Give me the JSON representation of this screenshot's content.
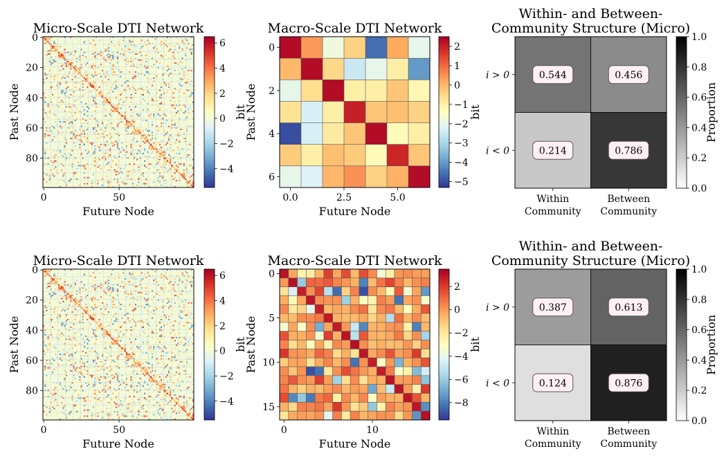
{
  "figure": {
    "colorbar_label": "bit",
    "proportion_label": "Proportion"
  },
  "chart_data": [
    {
      "id": "micro1",
      "type": "heatmap",
      "title": "Micro-Scale DTI Network",
      "xlabel": "Future Node",
      "ylabel": "Past Node",
      "size": 100,
      "xticks": [
        0,
        50
      ],
      "yticks": [
        0,
        20,
        40,
        60,
        80
      ],
      "colormap": "RdYlBu_r",
      "clim": [
        -5.5,
        6.5
      ],
      "colorbar_ticks": [
        6,
        4,
        2,
        0,
        -2,
        -4
      ],
      "colorbar_label": "bit",
      "note": "dense 100x100 matrix; diagonal-block pattern, values mostly near 0"
    },
    {
      "id": "macro1",
      "type": "heatmap",
      "title": "Macro-Scale DTI Network",
      "xlabel": "Future Node",
      "ylabel": "Past Node",
      "size": 7,
      "xticks": [
        0.0,
        2.5,
        5.0
      ],
      "yticks": [
        0,
        2,
        4,
        6
      ],
      "colormap": "RdYlBu_r",
      "clim": [
        -5.3,
        2.5
      ],
      "colorbar_ticks": [
        2,
        1,
        0,
        -1,
        -2,
        -3,
        -4,
        -5
      ],
      "colorbar_label": "bit",
      "values": [
        [
          2.3,
          0.4,
          -1.8,
          -0.4,
          -4.6,
          0.2,
          -2.0
        ],
        [
          0.0,
          2.3,
          -0.5,
          -2.5,
          -2.0,
          -1.0,
          -4.0
        ],
        [
          -2.0,
          -0.6,
          2.3,
          -1.0,
          -1.0,
          -0.2,
          -1.2
        ],
        [
          -0.7,
          -2.3,
          -1.0,
          2.0,
          -0.2,
          -0.1,
          -0.4
        ],
        [
          -5.0,
          -2.3,
          -0.9,
          -0.2,
          2.3,
          -1.3,
          -1.0
        ],
        [
          -0.3,
          -1.0,
          -0.1,
          -0.3,
          -1.3,
          1.9,
          -0.2
        ],
        [
          -2.0,
          -2.2,
          0.0,
          0.5,
          -0.4,
          0.1,
          2.3
        ]
      ]
    },
    {
      "id": "comm1",
      "type": "heatmap",
      "title": "Within- and Between-\nCommunity Structure (Micro)",
      "xcategories": [
        "Within\nCommunity",
        "Between\nCommunity"
      ],
      "ycategories": [
        "i > 0",
        "i < 0"
      ],
      "colormap": "Greys",
      "clim": [
        0.0,
        1.0
      ],
      "colorbar_ticks": [
        1.0,
        0.8,
        0.6,
        0.4,
        0.2,
        0.0
      ],
      "colorbar_label": "Proportion",
      "values": [
        [
          0.544,
          0.456
        ],
        [
          0.214,
          0.786
        ]
      ],
      "labels": [
        [
          "0.544",
          "0.456"
        ],
        [
          "0.214",
          "0.786"
        ]
      ]
    },
    {
      "id": "micro2",
      "type": "heatmap",
      "title": "Micro-Scale DTI Network",
      "xlabel": "Future Node",
      "ylabel": "Past Node",
      "size": 100,
      "xticks": [
        0,
        50
      ],
      "yticks": [
        0,
        20,
        40,
        60,
        80
      ],
      "colormap": "RdYlBu_r",
      "clim": [
        -5.5,
        6.5
      ],
      "colorbar_ticks": [
        6,
        4,
        2,
        0,
        -2,
        -4
      ],
      "colorbar_label": "bit",
      "note": "dense 100x100 matrix; diagonal-block pattern, values mostly near 0"
    },
    {
      "id": "macro2",
      "type": "heatmap",
      "title": "Macro-Scale DTI Network",
      "xlabel": "Future Node",
      "ylabel": "Past Node",
      "size": 17,
      "xticks": [
        0,
        10
      ],
      "yticks": [
        0,
        5,
        10,
        15
      ],
      "colormap": "RdYlBu_r",
      "clim": [
        -9.5,
        3.5
      ],
      "colorbar_ticks": [
        2,
        0,
        -2,
        -4,
        -6,
        -8
      ],
      "colorbar_label": "bit",
      "note": "17x17 matrix; strong positive diagonal, scattered negative entries"
    },
    {
      "id": "comm2",
      "type": "heatmap",
      "title": "Within- and Between-\nCommunity Structure (Micro)",
      "xcategories": [
        "Within\nCommunity",
        "Between\nCommunity"
      ],
      "ycategories": [
        "i > 0",
        "i < 0"
      ],
      "colormap": "Greys",
      "clim": [
        0.0,
        1.0
      ],
      "colorbar_ticks": [
        1.0,
        0.8,
        0.6,
        0.4,
        0.2,
        0.0
      ],
      "colorbar_label": "Proportion",
      "values": [
        [
          0.387,
          0.613
        ],
        [
          0.124,
          0.876
        ]
      ],
      "labels": [
        [
          "0.387",
          "0.613"
        ],
        [
          "0.124",
          "0.876"
        ]
      ]
    }
  ]
}
